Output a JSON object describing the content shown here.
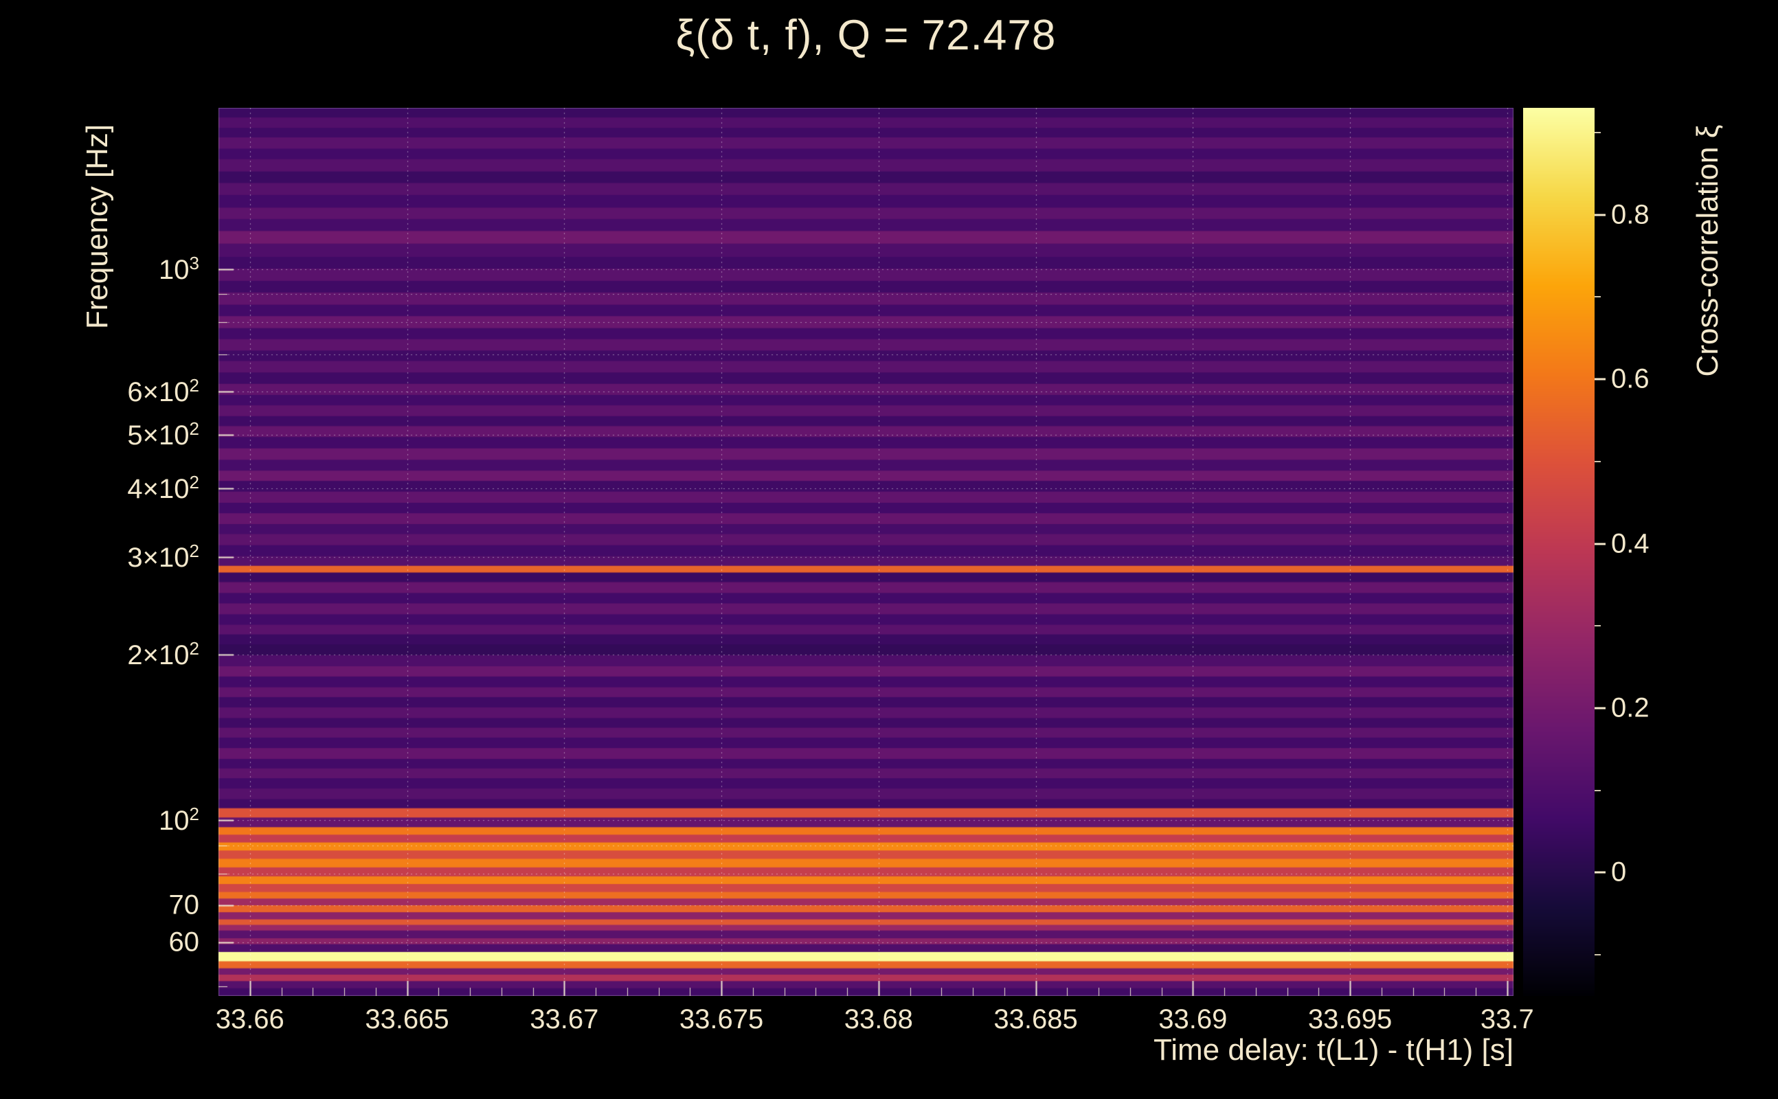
{
  "colors": {
    "background": "#000000",
    "label_text": "#f3e8cc",
    "gridline": "#ffffff"
  },
  "chart_data": {
    "type": "heatmap",
    "title": "ξ(δ t, f), Q = 72.478",
    "xlabel": "Time delay: t(L1) - t(H1) [s]",
    "ylabel": "Frequency [Hz]",
    "colorbar_label": "Cross-correlation ξ",
    "x_range": [
      33.659,
      33.7002
    ],
    "y_range_hz": [
      48,
      1960
    ],
    "y_scale": "log",
    "color_range": [
      -0.15,
      0.93
    ],
    "x_ticks": [
      {
        "value": 33.66,
        "label": "33.66"
      },
      {
        "value": 33.665,
        "label": "33.665"
      },
      {
        "value": 33.67,
        "label": "33.67"
      },
      {
        "value": 33.675,
        "label": "33.675"
      },
      {
        "value": 33.68,
        "label": "33.68"
      },
      {
        "value": 33.685,
        "label": "33.685"
      },
      {
        "value": 33.69,
        "label": "33.69"
      },
      {
        "value": 33.695,
        "label": "33.695"
      },
      {
        "value": 33.7,
        "label": "33.7"
      }
    ],
    "x_minor_tick_step": 0.001,
    "y_ticks": [
      {
        "value": 1000,
        "text": "10",
        "sup": "3"
      },
      {
        "value": 600,
        "text": "6×10",
        "sup": "2"
      },
      {
        "value": 500,
        "text": "5×10",
        "sup": "2"
      },
      {
        "value": 400,
        "text": "4×10",
        "sup": "2"
      },
      {
        "value": 300,
        "text": "3×10",
        "sup": "2"
      },
      {
        "value": 200,
        "text": "2×10",
        "sup": "2"
      },
      {
        "value": 100,
        "text": "10",
        "sup": "2"
      },
      {
        "value": 70,
        "text": "70"
      },
      {
        "value": 60,
        "text": "60"
      }
    ],
    "y_gridlines_hz": [
      60,
      70,
      80,
      90,
      100,
      200,
      300,
      400,
      500,
      600,
      700,
      800,
      900,
      1000
    ],
    "y_minor_ticks_hz": [
      50,
      60,
      70,
      80,
      90,
      200,
      300,
      400,
      500,
      700,
      800,
      900
    ],
    "colorbar_ticks": [
      {
        "value": 0.8,
        "label": "0.8"
      },
      {
        "value": 0.6,
        "label": "0.6"
      },
      {
        "value": 0.4,
        "label": "0.4"
      },
      {
        "value": 0.2,
        "label": "0.2"
      },
      {
        "value": 0,
        "label": "0"
      }
    ],
    "colorbar_minor_ticks": [
      0.9,
      0.7,
      0.5,
      0.3,
      0.1,
      -0.1
    ],
    "colormap": "inferno",
    "colormap_stops": [
      [
        0.0,
        0,
        0,
        4
      ],
      [
        0.1,
        22,
        11,
        57
      ],
      [
        0.2,
        66,
        10,
        104
      ],
      [
        0.3,
        106,
        23,
        110
      ],
      [
        0.4,
        147,
        38,
        103
      ],
      [
        0.5,
        188,
        55,
        84
      ],
      [
        0.6,
        221,
        81,
        58
      ],
      [
        0.7,
        243,
        120,
        25
      ],
      [
        0.8,
        252,
        165,
        10
      ],
      [
        0.9,
        246,
        215,
        70
      ],
      [
        1.0,
        252,
        255,
        164
      ]
    ],
    "bands_format": [
      "f_hi_hz",
      "f_lo_hz",
      "xi"
    ],
    "bands_note": "Cross-correlation ξ is approximately constant along the time-delay axis; horizontal bands vary with frequency.",
    "bands": [
      [
        1960,
        1880,
        0.05
      ],
      [
        1880,
        1800,
        0.11
      ],
      [
        1800,
        1730,
        0.06
      ],
      [
        1730,
        1650,
        0.13
      ],
      [
        1650,
        1580,
        0.07
      ],
      [
        1580,
        1500,
        0.12
      ],
      [
        1500,
        1430,
        0.05
      ],
      [
        1430,
        1360,
        0.12
      ],
      [
        1360,
        1290,
        0.07
      ],
      [
        1290,
        1230,
        0.14
      ],
      [
        1230,
        1170,
        0.08
      ],
      [
        1170,
        1110,
        0.19
      ],
      [
        1110,
        1050,
        0.1
      ],
      [
        1050,
        1000,
        0.06
      ],
      [
        1000,
        950,
        0.13
      ],
      [
        950,
        905,
        0.06
      ],
      [
        905,
        860,
        0.15
      ],
      [
        860,
        820,
        0.07
      ],
      [
        820,
        780,
        0.17
      ],
      [
        780,
        745,
        0.07
      ],
      [
        745,
        710,
        0.14
      ],
      [
        710,
        680,
        0.06
      ],
      [
        680,
        648,
        0.13
      ],
      [
        648,
        618,
        0.06
      ],
      [
        618,
        590,
        0.15
      ],
      [
        590,
        565,
        0.07
      ],
      [
        565,
        540,
        0.14
      ],
      [
        540,
        518,
        0.06
      ],
      [
        518,
        495,
        0.16
      ],
      [
        495,
        472,
        0.07
      ],
      [
        472,
        450,
        0.17
      ],
      [
        450,
        430,
        0.08
      ],
      [
        430,
        412,
        0.18
      ],
      [
        412,
        394,
        0.06
      ],
      [
        394,
        376,
        0.15
      ],
      [
        376,
        360,
        0.07
      ],
      [
        360,
        344,
        0.16
      ],
      [
        344,
        330,
        0.08
      ],
      [
        330,
        315,
        0.14
      ],
      [
        315,
        301,
        0.07
      ],
      [
        301,
        289,
        0.12
      ],
      [
        289,
        281,
        0.55
      ],
      [
        281,
        270,
        0.05
      ],
      [
        270,
        258,
        0.16
      ],
      [
        258,
        247,
        0.07
      ],
      [
        247,
        236,
        0.15
      ],
      [
        236,
        226,
        0.07
      ],
      [
        226,
        217,
        0.13
      ],
      [
        217,
        208,
        0.05
      ],
      [
        208,
        199,
        0.03
      ],
      [
        199,
        190,
        0.1
      ],
      [
        190,
        182,
        0.17
      ],
      [
        182,
        174,
        0.07
      ],
      [
        174,
        167,
        0.15
      ],
      [
        167,
        160,
        0.06
      ],
      [
        160,
        153,
        0.13
      ],
      [
        153,
        147,
        0.06
      ],
      [
        147,
        141,
        0.14
      ],
      [
        141,
        135,
        0.07
      ],
      [
        135,
        129,
        0.16
      ],
      [
        129,
        124,
        0.07
      ],
      [
        124,
        119,
        0.14
      ],
      [
        119,
        114,
        0.07
      ],
      [
        114,
        109,
        0.12
      ],
      [
        109,
        105,
        0.06
      ],
      [
        105,
        101,
        0.5
      ],
      [
        101,
        97,
        0.16
      ],
      [
        97,
        94,
        0.6
      ],
      [
        94,
        91,
        0.42
      ],
      [
        91,
        88,
        0.65
      ],
      [
        88,
        85,
        0.48
      ],
      [
        85,
        82,
        0.62
      ],
      [
        82,
        79,
        0.42
      ],
      [
        79,
        76.5,
        0.63
      ],
      [
        76.5,
        74,
        0.46
      ],
      [
        74,
        72,
        0.58
      ],
      [
        72,
        70,
        0.32
      ],
      [
        70,
        68,
        0.55
      ],
      [
        68,
        66,
        0.26
      ],
      [
        66,
        64.5,
        0.52
      ],
      [
        64.5,
        63,
        0.3
      ],
      [
        63,
        61,
        0.13
      ],
      [
        61,
        59.5,
        0.26
      ],
      [
        59.5,
        57.6,
        0.1
      ],
      [
        57.6,
        55.4,
        0.92
      ],
      [
        55.4,
        53.8,
        0.56
      ],
      [
        53.8,
        52.4,
        0.2
      ],
      [
        52.4,
        51,
        0.36
      ],
      [
        51,
        49.5,
        0.12
      ],
      [
        49.5,
        48,
        0.06
      ]
    ]
  }
}
